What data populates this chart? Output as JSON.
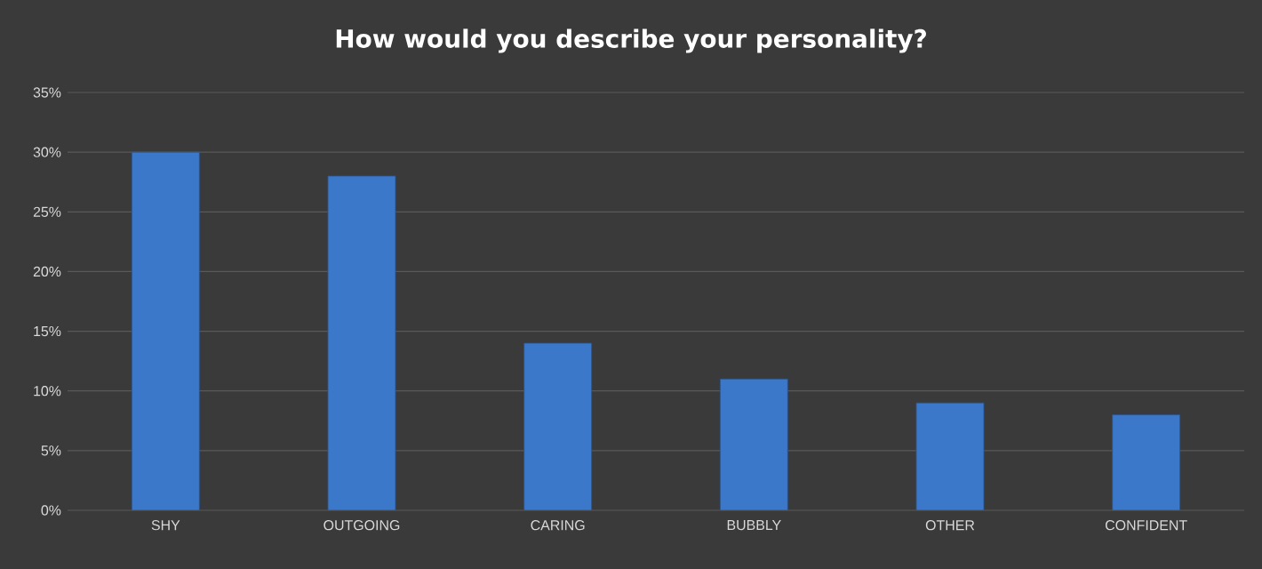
{
  "chart_data": {
    "type": "bar",
    "title": "How would you describe your personality?",
    "categories": [
      "SHY",
      "OUTGOING",
      "CARING",
      "BUBBLY",
      "OTHER",
      "CONFIDENT"
    ],
    "values": [
      30,
      28,
      14,
      11,
      9,
      8
    ],
    "color": "#3b78c9",
    "ylim": [
      0,
      35
    ],
    "yticks": [
      {
        "value": 0,
        "label": "0%"
      },
      {
        "value": 5,
        "label": "5%"
      },
      {
        "value": 10,
        "label": "10%"
      },
      {
        "value": 15,
        "label": "15%"
      },
      {
        "value": 20,
        "label": "20%"
      },
      {
        "value": 25,
        "label": "25%"
      },
      {
        "value": 30,
        "label": "30%"
      },
      {
        "value": 35,
        "label": "35%"
      }
    ],
    "grid": "y"
  }
}
